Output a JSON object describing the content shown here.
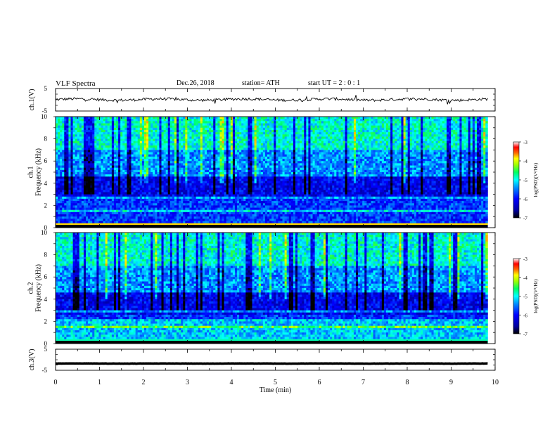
{
  "header": {
    "title": "VLF  Spectra",
    "date": "Dec.26, 2018",
    "station": "station= ATH",
    "start": "start  UT  =   2  : 0  : 1"
  },
  "colors": {
    "line": "#000000",
    "colormap": [
      "#000000",
      "#0000a0",
      "#0000ff",
      "#0090ff",
      "#00ffff",
      "#00ff60",
      "#a0ff00",
      "#ffff00",
      "#ff6000",
      "#ff0000",
      "#ffffff"
    ]
  },
  "chart_data": [
    {
      "type": "line",
      "ylabel": "ch.1(V)",
      "yticks": [
        "5",
        "-5"
      ],
      "ylim": [
        -5,
        5
      ],
      "x_range_min": [
        0,
        9.83
      ],
      "level": 0.1,
      "noise": 0.6
    },
    {
      "type": "heatmap",
      "ylabel": "ch.1\nFrequency (kHz)",
      "yticks": [
        "10",
        "8",
        "6",
        "4",
        "2",
        "0"
      ],
      "ylim": [
        0,
        10
      ],
      "x_range_min": [
        0,
        9.83
      ],
      "colorbar": {
        "label": "log(PSD)(V²/Hz)",
        "ticks": [
          "-3",
          "-4",
          "-5",
          "-6",
          "-7"
        ],
        "range": [
          -7,
          -3
        ]
      }
    },
    {
      "type": "heatmap",
      "ylabel": "ch.2\nFrequency (kHz)",
      "yticks": [
        "10",
        "8",
        "6",
        "4",
        "2",
        "0"
      ],
      "ylim": [
        0,
        10
      ],
      "x_range_min": [
        0,
        9.83
      ],
      "colorbar": {
        "label": "log(PSD)(V²/Hz)",
        "ticks": [
          "-3",
          "-4",
          "-5",
          "-6",
          "-7"
        ],
        "range": [
          -7,
          -3
        ]
      }
    },
    {
      "type": "line",
      "ylabel": "ch.3(V)",
      "yticks": [
        "5",
        "-5"
      ],
      "ylim": [
        -5,
        5
      ],
      "x_range_min": [
        0,
        9.83
      ],
      "level": -1.8,
      "noise": 0.05
    }
  ],
  "xaxis": {
    "label": "Time  (min)",
    "ticks": [
      "0",
      "1",
      "2",
      "3",
      "4",
      "5",
      "6",
      "7",
      "8",
      "9",
      "10"
    ],
    "range": [
      0,
      10
    ]
  }
}
